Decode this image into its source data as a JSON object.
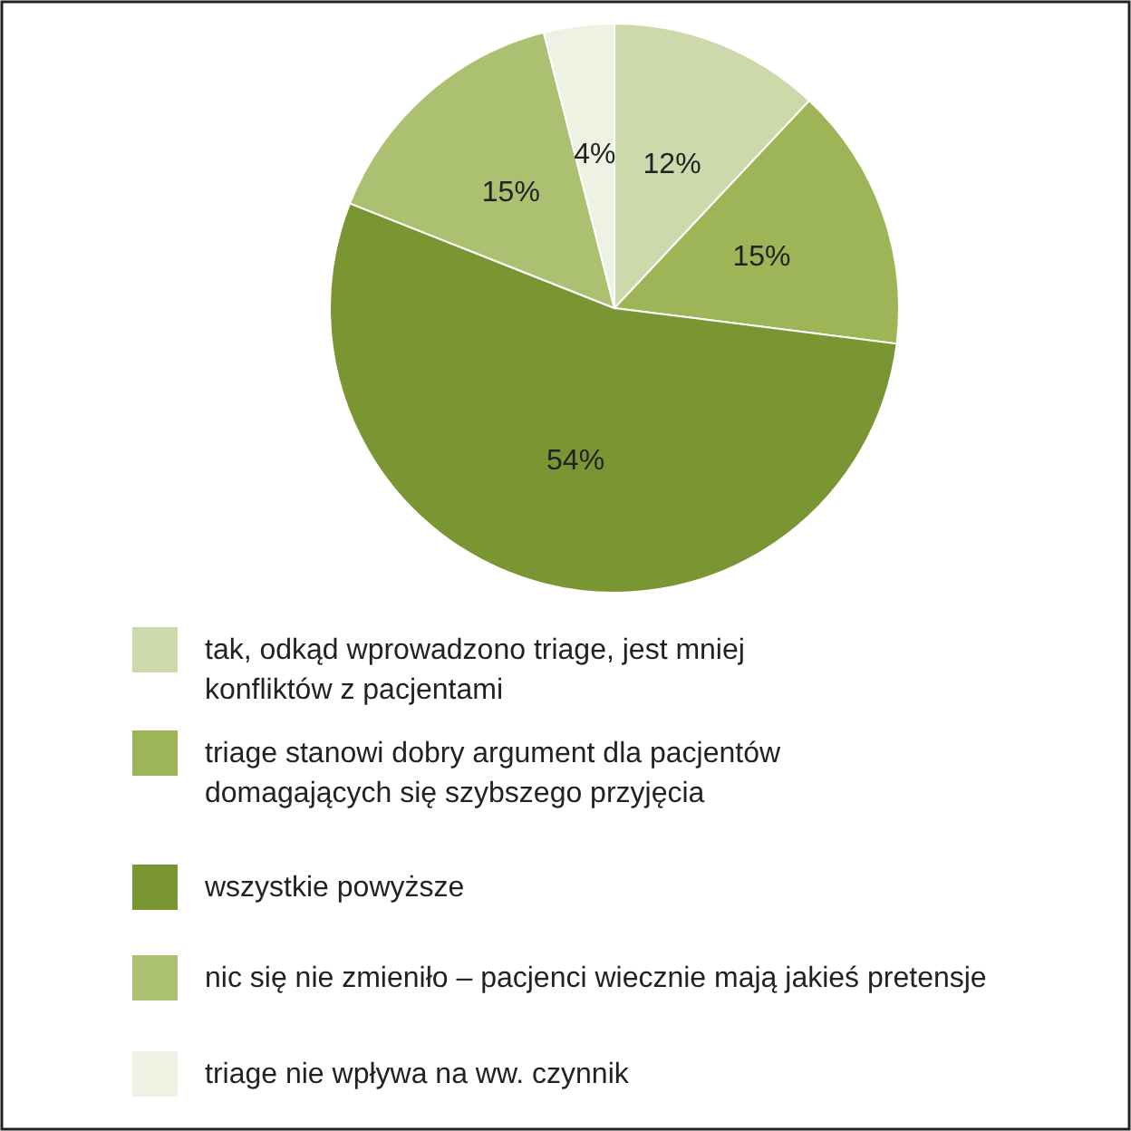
{
  "chart_data": {
    "type": "pie",
    "categories": [
      "tak, odkąd wprowadzono triage, jest mniej\nkonfliktów z pacjentami",
      "triage stanowi dobry argument dla pacjentów\ndomagających się szybszego przyjęcia",
      "wszystkie powyższe",
      "nic się nie zmieniło – pacjenci wiecznie mają jakieś pretensje",
      "triage nie wpływa na ww. czynnik"
    ],
    "values": [
      12,
      15,
      54,
      15,
      4
    ],
    "colors": [
      "#cdd9ab",
      "#9db556",
      "#7a9633",
      "#abc171",
      "#eef2e3"
    ],
    "value_labels": [
      "12%",
      "15%",
      "54%",
      "15%",
      "4%"
    ],
    "legend": "bottom"
  }
}
